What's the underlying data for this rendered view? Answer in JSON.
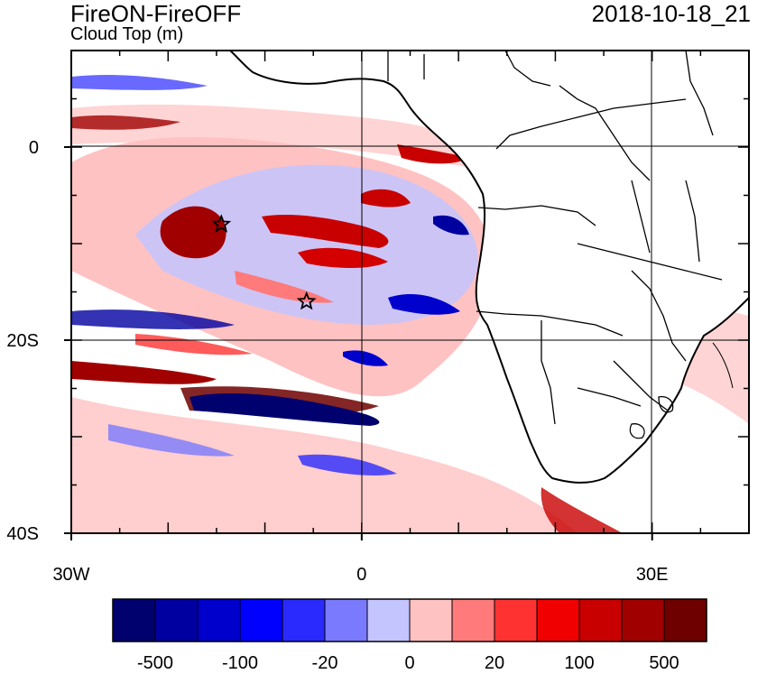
{
  "header": {
    "title": "FireON-FireOFF",
    "variable": "Cloud Top (m)",
    "datetime": "2018-10-18_21"
  },
  "map": {
    "lat_range": [
      -40,
      10
    ],
    "lon_range": [
      -30,
      40
    ],
    "lat_ticks": [
      {
        "value": 0,
        "label": "0"
      },
      {
        "value": -20,
        "label": "20S"
      },
      {
        "value": -40,
        "label": "40S"
      }
    ],
    "lon_ticks": [
      {
        "value": -30,
        "label": "30W"
      },
      {
        "value": 0,
        "label": "0"
      },
      {
        "value": 30,
        "label": "30E"
      }
    ],
    "markers": [
      {
        "name": "star-marker-1",
        "lon": -14.5,
        "lat": -8
      },
      {
        "name": "star-marker-2",
        "lon": -5.7,
        "lat": -16
      }
    ]
  },
  "colorbar": {
    "colors": [
      "#00006e",
      "#0000a0",
      "#0000cd",
      "#0000ff",
      "#2a2aff",
      "#7a7aff",
      "#c4c4ff",
      "#ffc2c2",
      "#ff7a7a",
      "#ff3232",
      "#f00000",
      "#c80000",
      "#a00000",
      "#6e0000"
    ],
    "labels": [
      "-500",
      "-100",
      "-20",
      "0",
      "20",
      "100",
      "500"
    ]
  }
}
